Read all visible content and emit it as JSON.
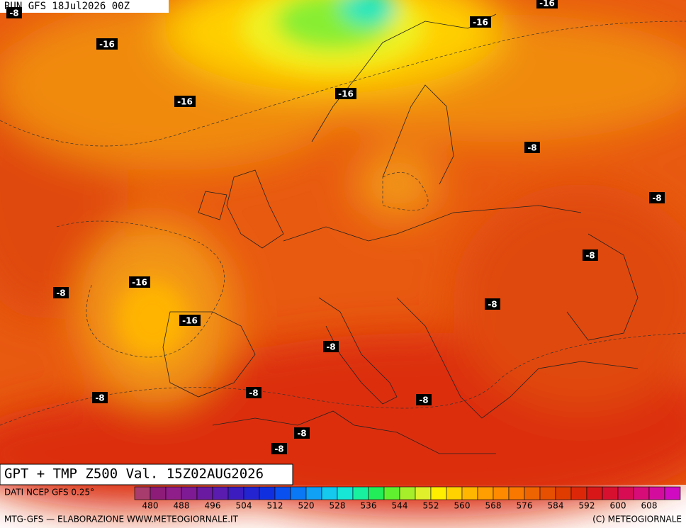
{
  "header": {
    "run": "RUN GFS 18Jul2026 00Z"
  },
  "map": {
    "title": "GPT + TMP Z500 Val. 15Z02AUG2026",
    "contour_labels": [
      "-8",
      "-16",
      "-16",
      "-16",
      "-16",
      "-16",
      "-8",
      "-8",
      "-8",
      "-8",
      "-16",
      "-16",
      "-8",
      "-8",
      "-8",
      "-8",
      "-8",
      "-8",
      "-8"
    ]
  },
  "legend": {
    "source": "DATI NCEP GFS 0.25°",
    "ticks": [
      480,
      488,
      496,
      504,
      512,
      520,
      528,
      536,
      544,
      552,
      560,
      568,
      576,
      584,
      592,
      600,
      608
    ],
    "colors": [
      "#a83c6c",
      "#8c1c78",
      "#901e8a",
      "#7e1a94",
      "#6a1aa0",
      "#5a1cae",
      "#3c1cbe",
      "#2424d0",
      "#1030e0",
      "#0a50ee",
      "#0a78f4",
      "#10a0f4",
      "#14c8ee",
      "#16e6d6",
      "#18f0a0",
      "#22ee5a",
      "#60f030",
      "#a6ee2a",
      "#e0f02a",
      "#ffee00",
      "#ffd200",
      "#ffb600",
      "#ff9e00",
      "#ff8a00",
      "#f87800",
      "#ee6400",
      "#e65000",
      "#e03c00",
      "#dc2808",
      "#d81818",
      "#d81030",
      "#d80c52",
      "#d80c78",
      "#d40c9e",
      "#d00ac0"
    ]
  },
  "footer": {
    "left": "MTG-GFS — ELABORAZIONE WWW.METEOGIORNALE.IT",
    "right": "(C) METEOGIORNALE"
  }
}
